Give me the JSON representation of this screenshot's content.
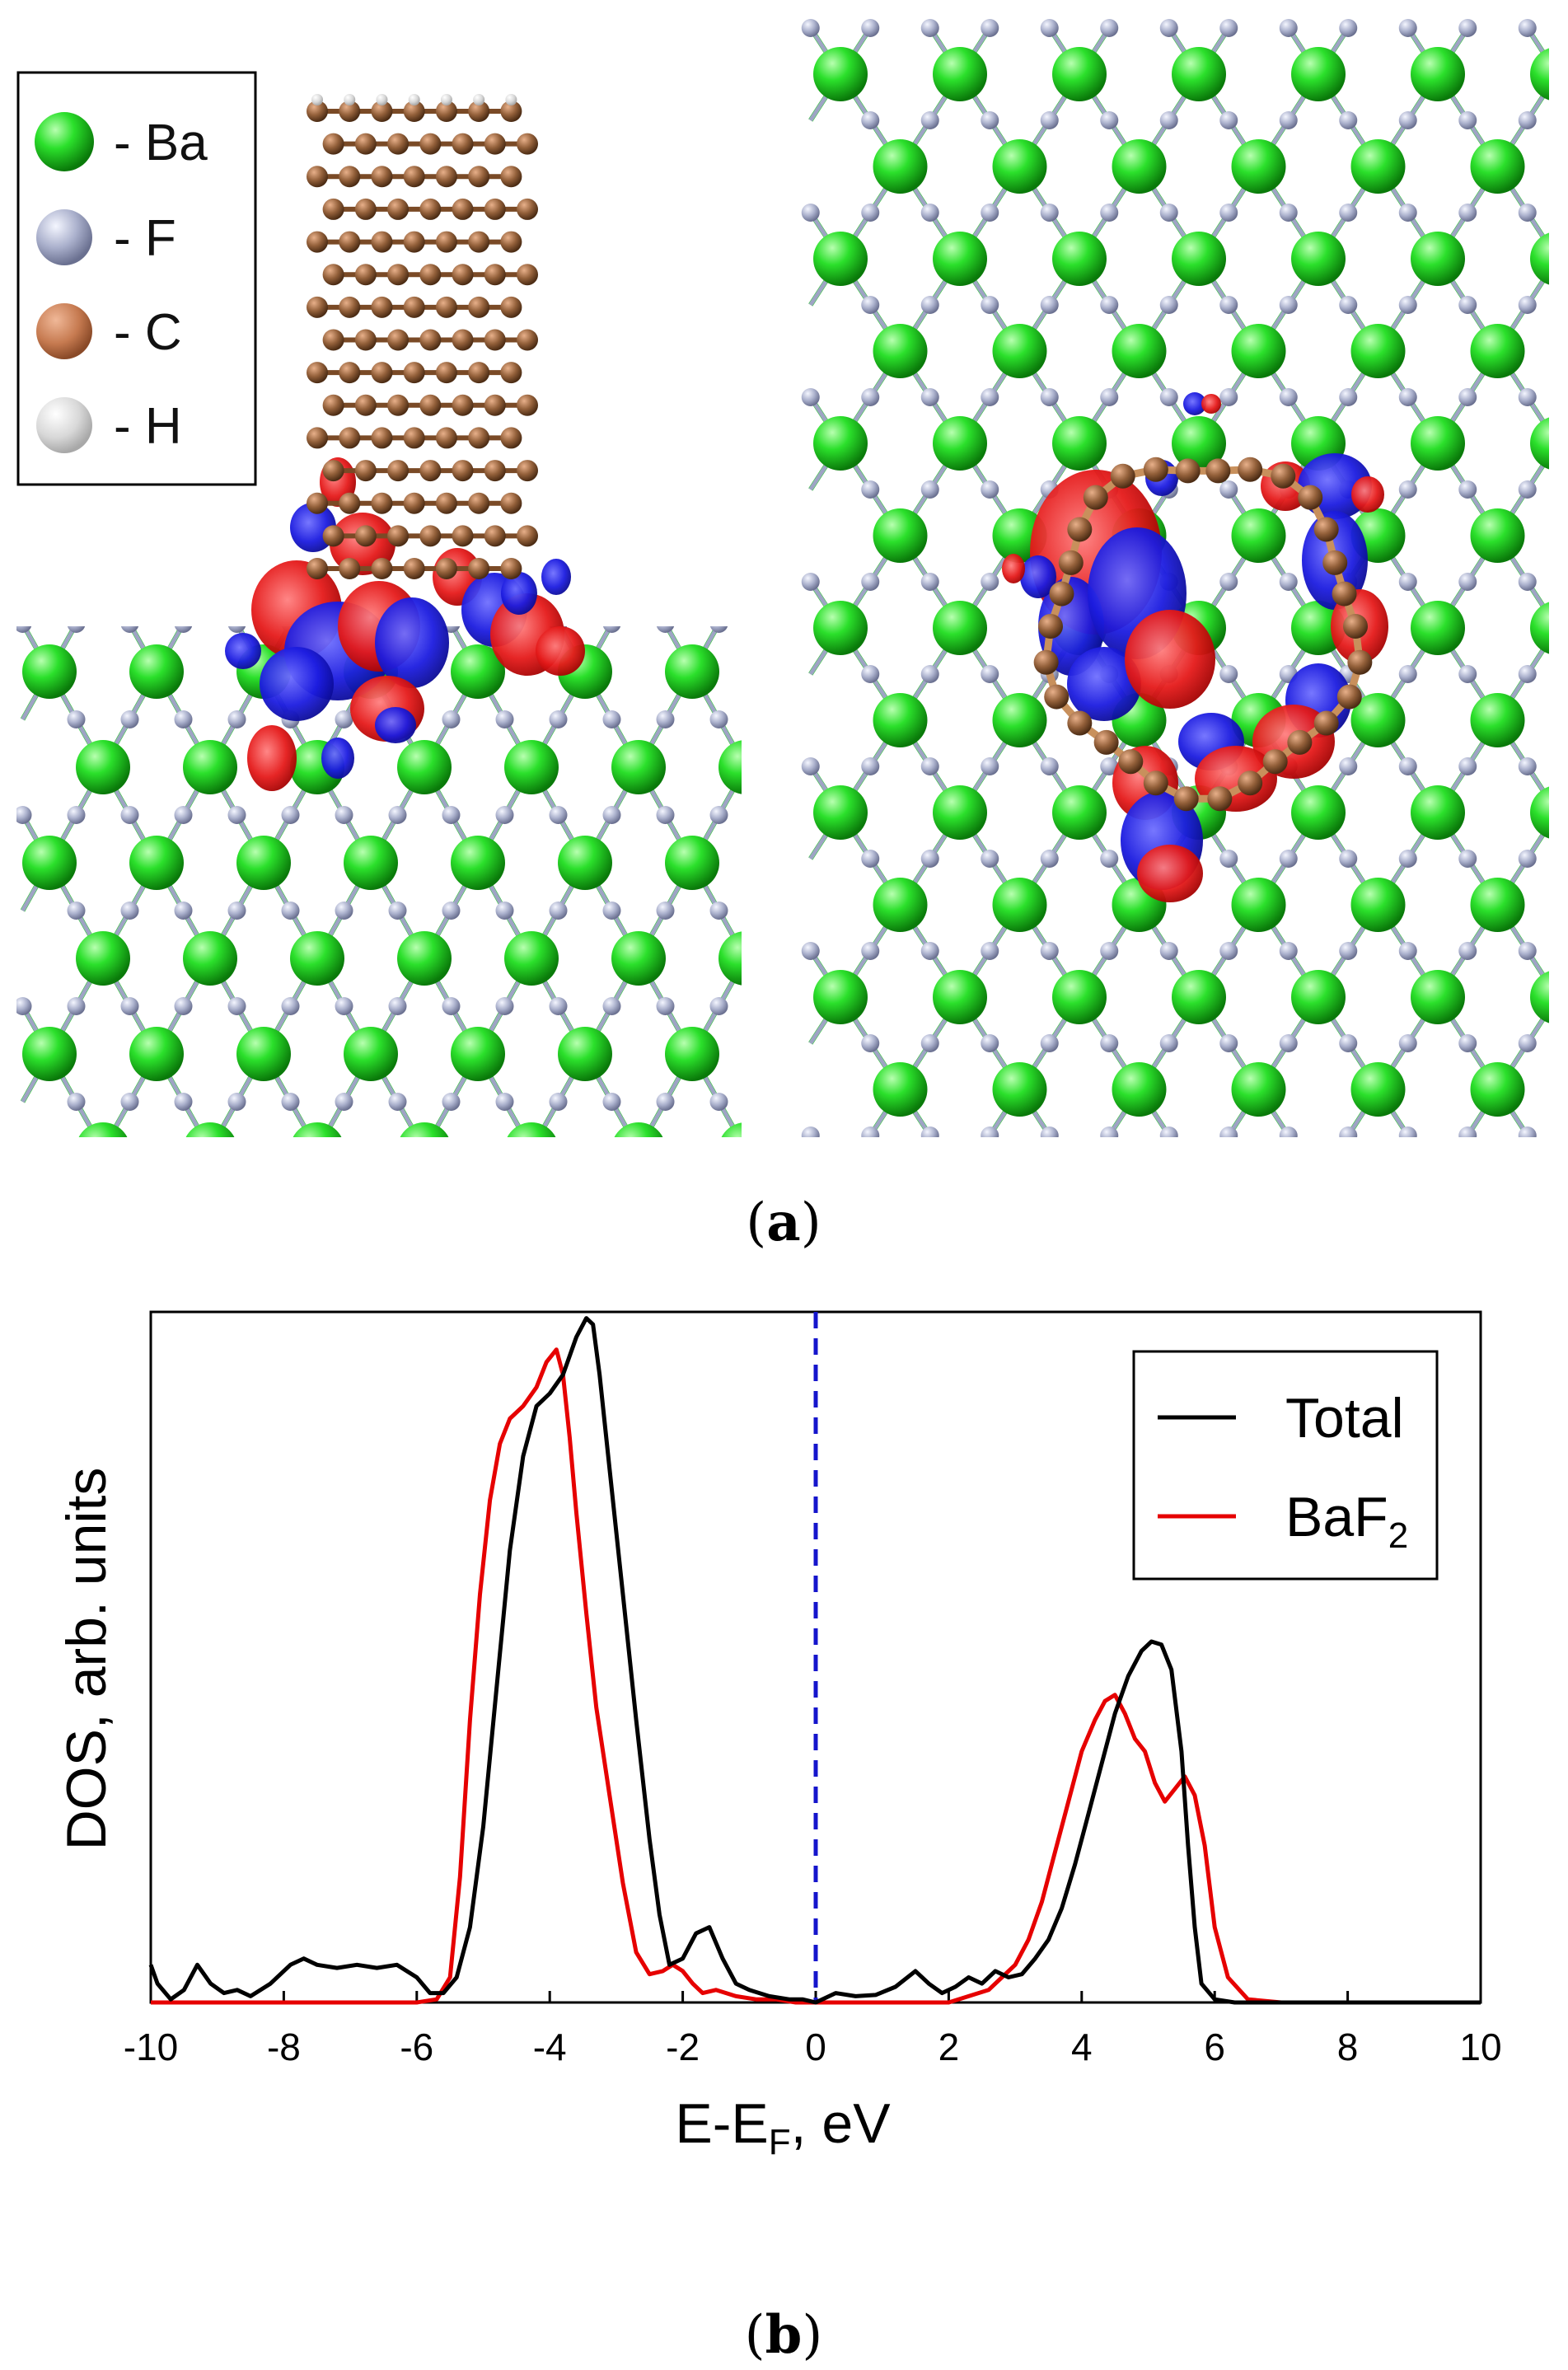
{
  "panel_a": {
    "label_prefix": "(",
    "label_letter": "a",
    "label_suffix": ")",
    "legend": [
      {
        "text": "- Ba",
        "color": "#22d422"
      },
      {
        "text": "- F",
        "color": "#a9aec8"
      },
      {
        "text": "- C",
        "color": "#c67a50"
      },
      {
        "text": "- H",
        "color": "#d8d8d8"
      }
    ]
  },
  "panel_b": {
    "label_prefix": "(",
    "label_letter": "b",
    "label_suffix": ")"
  },
  "colors": {
    "ba_atom": "#22d422",
    "f_atom": "#a9aec8",
    "c_atom": "#8b5a35",
    "density_positive": "#e51a1a",
    "density_negative": "#1c1ce0",
    "fermi_line": "#1515cc"
  },
  "chart_data": {
    "type": "line",
    "xlabel_main": "E-E",
    "xlabel_sub": "F",
    "xlabel_tail": ", eV",
    "ylabel": "DOS, arb. units",
    "xlim": [
      -10,
      10
    ],
    "ylim": [
      0,
      1.1
    ],
    "x_ticks": [
      -10,
      -8,
      -6,
      -4,
      -2,
      0,
      2,
      4,
      6,
      8,
      10
    ],
    "x_tick_labels": [
      "-10",
      "-8",
      "-6",
      "-4",
      "-2",
      "0",
      "2",
      "4",
      "6",
      "8",
      "10"
    ],
    "y_ticks_shown": false,
    "fermi_level": 0,
    "legend_position": "top-right",
    "series": [
      {
        "name_main": "Total",
        "name_sub": "",
        "color": "#000000",
        "x": [
          -10,
          -9.9,
          -9.7,
          -9.5,
          -9.3,
          -9.1,
          -8.9,
          -8.7,
          -8.5,
          -8.2,
          -7.9,
          -7.7,
          -7.5,
          -7.2,
          -6.9,
          -6.6,
          -6.3,
          -6.0,
          -5.8,
          -5.6,
          -5.4,
          -5.2,
          -5.0,
          -4.8,
          -4.6,
          -4.4,
          -4.2,
          -4.0,
          -3.8,
          -3.6,
          -3.45,
          -3.35,
          -3.25,
          -3.1,
          -2.9,
          -2.7,
          -2.5,
          -2.35,
          -2.2,
          -2.0,
          -1.8,
          -1.6,
          -1.4,
          -1.2,
          -1.0,
          -0.7,
          -0.4,
          -0.2,
          0,
          0.3,
          0.6,
          0.9,
          1.2,
          1.5,
          1.7,
          1.9,
          2.1,
          2.3,
          2.5,
          2.7,
          2.9,
          3.1,
          3.3,
          3.5,
          3.7,
          3.9,
          4.1,
          4.3,
          4.5,
          4.7,
          4.9,
          5.05,
          5.2,
          5.35,
          5.5,
          5.6,
          5.7,
          5.8,
          6.0,
          6.3,
          7,
          8,
          9,
          10
        ],
        "y": [
          0.06,
          0.03,
          0.005,
          0.02,
          0.06,
          0.03,
          0.015,
          0.02,
          0.01,
          0.03,
          0.06,
          0.07,
          0.06,
          0.055,
          0.06,
          0.055,
          0.06,
          0.04,
          0.015,
          0.015,
          0.04,
          0.12,
          0.28,
          0.5,
          0.72,
          0.87,
          0.95,
          0.97,
          1.0,
          1.06,
          1.09,
          1.08,
          1.0,
          0.85,
          0.65,
          0.45,
          0.26,
          0.14,
          0.06,
          0.07,
          0.11,
          0.12,
          0.07,
          0.03,
          0.02,
          0.01,
          0.005,
          0.005,
          0,
          0.015,
          0.01,
          0.012,
          0.025,
          0.05,
          0.03,
          0.015,
          0.025,
          0.04,
          0.03,
          0.05,
          0.04,
          0.045,
          0.07,
          0.1,
          0.15,
          0.22,
          0.3,
          0.38,
          0.46,
          0.52,
          0.56,
          0.575,
          0.57,
          0.53,
          0.4,
          0.25,
          0.12,
          0.03,
          0.005,
          0,
          0,
          0,
          0,
          0
        ]
      },
      {
        "name_main": "BaF",
        "name_sub": "2",
        "color": "#e60000",
        "x": [
          -10,
          -6,
          -5.7,
          -5.5,
          -5.35,
          -5.2,
          -5.05,
          -4.9,
          -4.75,
          -4.6,
          -4.4,
          -4.2,
          -4.05,
          -3.9,
          -3.8,
          -3.7,
          -3.6,
          -3.45,
          -3.3,
          -3.1,
          -2.9,
          -2.7,
          -2.5,
          -2.3,
          -2.15,
          -2.0,
          -1.85,
          -1.7,
          -1.5,
          -1.2,
          -0.9,
          -0.6,
          -0.3,
          0,
          1.5,
          2.0,
          2.3,
          2.6,
          2.8,
          3.0,
          3.2,
          3.4,
          3.6,
          3.8,
          4.0,
          4.2,
          4.35,
          4.5,
          4.65,
          4.8,
          4.95,
          5.1,
          5.25,
          5.4,
          5.55,
          5.7,
          5.85,
          6.0,
          6.2,
          6.5,
          7,
          8,
          9,
          10
        ],
        "y": [
          0,
          0,
          0.005,
          0.04,
          0.2,
          0.45,
          0.65,
          0.8,
          0.89,
          0.93,
          0.95,
          0.98,
          1.02,
          1.04,
          1.0,
          0.9,
          0.78,
          0.62,
          0.47,
          0.33,
          0.19,
          0.08,
          0.045,
          0.05,
          0.06,
          0.05,
          0.03,
          0.015,
          0.02,
          0.01,
          0.005,
          0.005,
          0,
          0,
          0,
          0,
          0.01,
          0.02,
          0.04,
          0.06,
          0.1,
          0.16,
          0.24,
          0.32,
          0.4,
          0.45,
          0.48,
          0.49,
          0.46,
          0.42,
          0.4,
          0.35,
          0.32,
          0.34,
          0.36,
          0.33,
          0.25,
          0.12,
          0.04,
          0.005,
          0,
          0,
          0,
          0
        ]
      }
    ]
  }
}
